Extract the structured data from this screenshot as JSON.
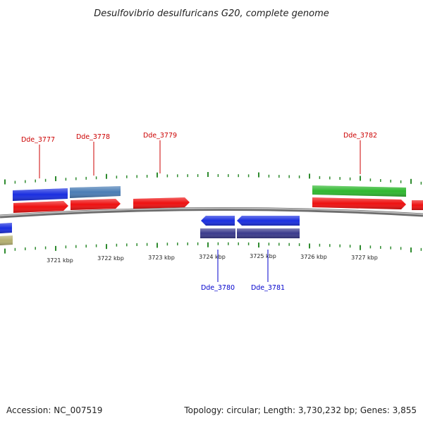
{
  "title": "Desulfovibrio desulfuricans G20, complete genome",
  "footer": {
    "accession": "Accession: NC_007519",
    "summary": "Topology: circular; Length: 3,730,232 bp; Genes: 3,855"
  },
  "colors": {
    "backbone": "#8a8a8a",
    "tick": "#2e8b2e",
    "label_forward": "#cc0000",
    "label_reverse": "#0000cc",
    "red": "#ee1111",
    "blue": "#1a2ee0",
    "steelblue": "#4a7db5",
    "green": "#2fb82f",
    "navy": "#3a3a8c",
    "khaki": "#b5b070"
  },
  "ticks": [
    "3721 kbp",
    "3722 kbp",
    "3723 kbp",
    "3724 kbp",
    "3725 kbp",
    "3726 kbp",
    "3727 kbp"
  ],
  "labels": [
    {
      "text": "Dde_3777",
      "strand": "forward"
    },
    {
      "text": "Dde_3778",
      "strand": "forward"
    },
    {
      "text": "Dde_3779",
      "strand": "forward"
    },
    {
      "text": "Dde_3782",
      "strand": "forward"
    },
    {
      "text": "Dde_3780",
      "strand": "reverse"
    },
    {
      "text": "Dde_3781",
      "strand": "reverse"
    }
  ]
}
